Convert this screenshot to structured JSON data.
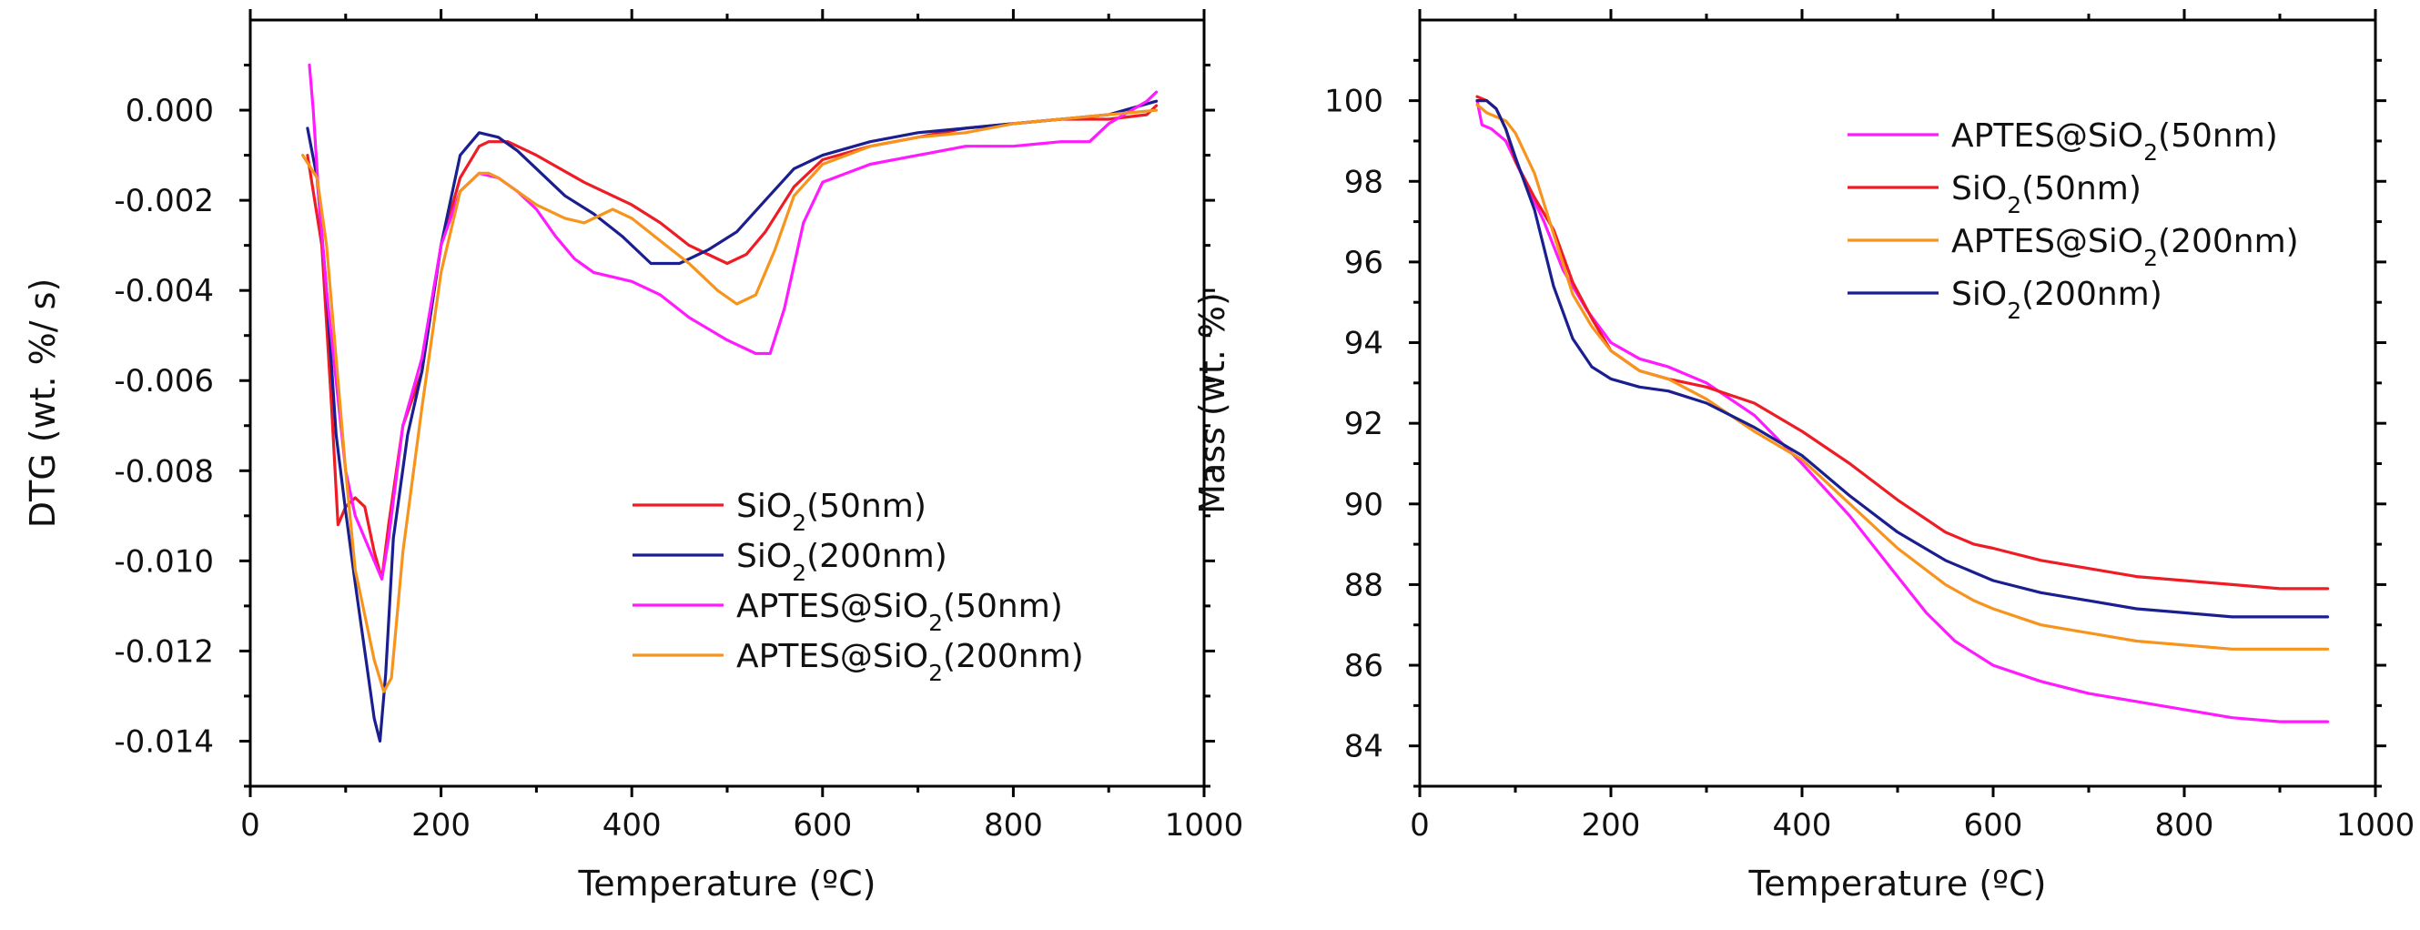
{
  "chart_data": [
    {
      "type": "line",
      "panel": "left",
      "xlabel": "Temperature (ºC)",
      "ylabel": "DTG (wt. %/ s)",
      "xlim": [
        0,
        1000
      ],
      "ylim": [
        -0.015,
        0.002
      ],
      "xticks": [
        0,
        200,
        400,
        600,
        800,
        1000
      ],
      "xtick_labels": [
        "0",
        "200",
        "400",
        "600",
        "800",
        "1000"
      ],
      "yticks": [
        0.0,
        -0.002,
        -0.004,
        -0.006,
        -0.008,
        -0.01,
        -0.012,
        -0.014
      ],
      "ytick_labels": [
        "0.000",
        "-0.002",
        "-0.004",
        "-0.006",
        "-0.008",
        "-0.010",
        "-0.012",
        "-0.014"
      ],
      "legend_position": "lower-right",
      "series": [
        {
          "name": "SiO",
          "sub": "2",
          "suffix": "(50nm)",
          "color": "#ee1c25",
          "x": [
            60,
            75,
            85,
            92,
            100,
            110,
            120,
            130,
            138,
            145,
            160,
            180,
            200,
            220,
            240,
            250,
            270,
            300,
            350,
            400,
            430,
            460,
            500,
            520,
            540,
            570,
            600,
            650,
            700,
            750,
            800,
            850,
            900,
            940,
            950
          ],
          "y": [
            -0.001,
            -0.003,
            -0.0065,
            -0.0092,
            -0.0088,
            -0.0086,
            -0.0088,
            -0.0098,
            -0.0104,
            -0.0092,
            -0.007,
            -0.0058,
            -0.003,
            -0.0015,
            -0.0008,
            -0.0007,
            -0.0007,
            -0.001,
            -0.0016,
            -0.0021,
            -0.0025,
            -0.003,
            -0.0034,
            -0.0032,
            -0.0027,
            -0.0017,
            -0.0011,
            -0.0008,
            -0.0006,
            -0.0004,
            -0.0003,
            -0.0002,
            -0.0002,
            -0.0001,
            0.0001
          ]
        },
        {
          "name": "SiO",
          "sub": "2",
          "suffix": "(200nm)",
          "color": "#1a1e8f",
          "x": [
            60,
            70,
            80,
            90,
            100,
            110,
            120,
            130,
            136,
            142,
            150,
            165,
            180,
            200,
            220,
            240,
            260,
            280,
            300,
            330,
            360,
            390,
            420,
            450,
            480,
            510,
            540,
            570,
            600,
            650,
            700,
            750,
            800,
            850,
            900,
            950
          ],
          "y": [
            -0.0004,
            -0.0015,
            -0.004,
            -0.0072,
            -0.0089,
            -0.0105,
            -0.012,
            -0.0135,
            -0.014,
            -0.0125,
            -0.0095,
            -0.0072,
            -0.0058,
            -0.003,
            -0.001,
            -0.0005,
            -0.0006,
            -0.0009,
            -0.0013,
            -0.0019,
            -0.0023,
            -0.0028,
            -0.0034,
            -0.0034,
            -0.0031,
            -0.0027,
            -0.002,
            -0.0013,
            -0.001,
            -0.0007,
            -0.0005,
            -0.0004,
            -0.0003,
            -0.0002,
            -0.0001,
            0.0002
          ]
        },
        {
          "name": "APTES@SiO",
          "sub": "2",
          "suffix": "(50nm)",
          "color": "#ff1aff",
          "x": [
            62,
            66,
            72,
            80,
            90,
            100,
            110,
            120,
            130,
            138,
            145,
            160,
            180,
            200,
            220,
            240,
            260,
            280,
            300,
            320,
            340,
            360,
            380,
            400,
            430,
            460,
            500,
            530,
            545,
            560,
            580,
            600,
            650,
            700,
            750,
            800,
            850,
            880,
            900,
            940,
            950
          ],
          "y": [
            0.001,
            0.0,
            -0.002,
            -0.004,
            -0.006,
            -0.008,
            -0.009,
            -0.0095,
            -0.01,
            -0.0104,
            -0.0095,
            -0.007,
            -0.0055,
            -0.003,
            -0.0018,
            -0.0014,
            -0.0015,
            -0.0018,
            -0.0022,
            -0.0028,
            -0.0033,
            -0.0036,
            -0.0037,
            -0.0038,
            -0.0041,
            -0.0046,
            -0.0051,
            -0.0054,
            -0.0054,
            -0.0044,
            -0.0025,
            -0.0016,
            -0.0012,
            -0.001,
            -0.0008,
            -0.0008,
            -0.0007,
            -0.0007,
            -0.0003,
            0.0002,
            0.0004
          ]
        },
        {
          "name": "APTES@SiO",
          "sub": "2",
          "suffix": "(200nm)",
          "color": "#f7941d",
          "x": [
            55,
            70,
            80,
            90,
            100,
            110,
            120,
            130,
            140,
            148,
            160,
            180,
            200,
            220,
            240,
            250,
            260,
            280,
            300,
            330,
            350,
            380,
            400,
            430,
            460,
            490,
            510,
            530,
            550,
            570,
            600,
            650,
            700,
            750,
            800,
            850,
            900,
            950
          ],
          "y": [
            -0.001,
            -0.0015,
            -0.003,
            -0.0055,
            -0.008,
            -0.0102,
            -0.0112,
            -0.0122,
            -0.0129,
            -0.0126,
            -0.0098,
            -0.0066,
            -0.0036,
            -0.0018,
            -0.0014,
            -0.0014,
            -0.0015,
            -0.0018,
            -0.0021,
            -0.0024,
            -0.0025,
            -0.0022,
            -0.0024,
            -0.0029,
            -0.0034,
            -0.004,
            -0.0043,
            -0.0041,
            -0.0031,
            -0.0019,
            -0.0012,
            -0.0008,
            -0.0006,
            -0.0005,
            -0.0003,
            -0.0002,
            -0.0001,
            0.0
          ]
        }
      ]
    },
    {
      "type": "line",
      "panel": "right",
      "xlabel": "Temperature (ºC)",
      "ylabel": "Mass (wt. %)",
      "xlim": [
        0,
        1000
      ],
      "ylim": [
        83,
        102
      ],
      "xticks": [
        0,
        200,
        400,
        600,
        800,
        1000
      ],
      "xtick_labels": [
        "0",
        "200",
        "400",
        "600",
        "800",
        "1000"
      ],
      "yticks": [
        84,
        86,
        88,
        90,
        92,
        94,
        96,
        98,
        100
      ],
      "ytick_labels": [
        "84",
        "86",
        "88",
        "90",
        "92",
        "94",
        "96",
        "98",
        "100"
      ],
      "legend_position": "top-right",
      "series": [
        {
          "name": "APTES@SiO",
          "sub": "2",
          "suffix": "(50nm)",
          "color": "#ff1aff",
          "x": [
            60,
            65,
            75,
            90,
            110,
            130,
            150,
            175,
            200,
            230,
            260,
            300,
            350,
            400,
            450,
            500,
            530,
            560,
            580,
            600,
            650,
            700,
            750,
            800,
            850,
            900,
            950
          ],
          "y": [
            100,
            99.4,
            99.3,
            99.0,
            98.0,
            97.0,
            95.8,
            94.8,
            94.0,
            93.6,
            93.4,
            93.0,
            92.2,
            91.0,
            89.7,
            88.2,
            87.3,
            86.6,
            86.3,
            86.0,
            85.6,
            85.3,
            85.1,
            84.9,
            84.7,
            84.6,
            84.6
          ]
        },
        {
          "name": "SiO",
          "sub": "2",
          "suffix": "(50nm)",
          "color": "#ee1c25",
          "x": [
            60,
            70,
            80,
            90,
            100,
            120,
            140,
            160,
            180,
            200,
            230,
            260,
            300,
            350,
            400,
            450,
            500,
            550,
            580,
            600,
            650,
            700,
            750,
            800,
            850,
            900,
            950
          ],
          "y": [
            100.1,
            100.0,
            99.8,
            99.3,
            98.5,
            97.6,
            96.8,
            95.5,
            94.6,
            93.8,
            93.3,
            93.1,
            92.9,
            92.5,
            91.8,
            91.0,
            90.1,
            89.3,
            89.0,
            88.9,
            88.6,
            88.4,
            88.2,
            88.1,
            88.0,
            87.9,
            87.9
          ]
        },
        {
          "name": "APTES@SiO",
          "sub": "2",
          "suffix": "(200nm)",
          "color": "#f7941d",
          "x": [
            60,
            70,
            80,
            90,
            100,
            120,
            140,
            160,
            180,
            200,
            230,
            260,
            300,
            350,
            400,
            450,
            500,
            550,
            580,
            600,
            650,
            700,
            750,
            800,
            850,
            900,
            950
          ],
          "y": [
            99.9,
            99.7,
            99.6,
            99.5,
            99.2,
            98.2,
            96.7,
            95.2,
            94.4,
            93.8,
            93.3,
            93.1,
            92.6,
            91.8,
            91.1,
            90.0,
            88.9,
            88.0,
            87.6,
            87.4,
            87.0,
            86.8,
            86.6,
            86.5,
            86.4,
            86.4,
            86.4
          ]
        },
        {
          "name": "SiO",
          "sub": "2",
          "suffix": "(200nm)",
          "color": "#1a1e8f",
          "x": [
            60,
            70,
            80,
            90,
            100,
            120,
            140,
            160,
            180,
            200,
            230,
            260,
            300,
            350,
            400,
            450,
            500,
            550,
            580,
            600,
            650,
            700,
            750,
            800,
            850,
            900,
            950
          ],
          "y": [
            100.0,
            100.0,
            99.8,
            99.3,
            98.6,
            97.3,
            95.4,
            94.1,
            93.4,
            93.1,
            92.9,
            92.8,
            92.5,
            91.9,
            91.2,
            90.2,
            89.3,
            88.6,
            88.3,
            88.1,
            87.8,
            87.6,
            87.4,
            87.3,
            87.2,
            87.2,
            87.2
          ]
        }
      ]
    }
  ]
}
